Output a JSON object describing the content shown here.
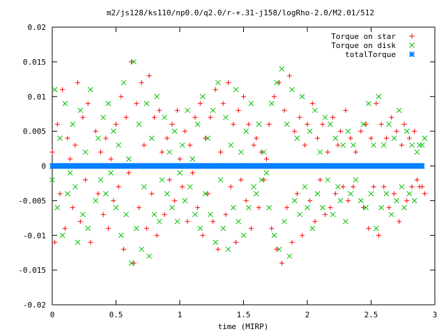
{
  "chart_data": {
    "type": "scatter",
    "title": "m2/js128/ks110/np0.0/q2.0/r-+.31-j158/logRho-2.0/M2.01/512",
    "xlabel": "time (MIRP)",
    "ylabel": "",
    "xlim": [
      0,
      3
    ],
    "ylim": [
      -0.02,
      0.02
    ],
    "xticks": [
      "0",
      "0.5",
      "1",
      "1.5",
      "2",
      "2.5",
      "3"
    ],
    "yticks": [
      "-0.02",
      "-0.015",
      "-0.01",
      "-0.005",
      "0",
      "0.005",
      "0.01",
      "0.015",
      "0.02"
    ],
    "grid": false,
    "legend_position": "top-right",
    "x_sample_start": 0.0,
    "x_sample_end": 2.9,
    "x_sample_step": 0.02,
    "series": [
      {
        "name": "Torque on star",
        "marker": "plus",
        "color": "#ff0000",
        "y": [
          0.002,
          -0.011,
          0.006,
          -0.004,
          0.011,
          -0.009,
          0.004,
          0.001,
          -0.006,
          0.003,
          0.012,
          -0.008,
          0.007,
          -0.002,
          0.009,
          -0.011,
          0.0,
          0.005,
          -0.004,
          0.002,
          -0.007,
          0.004,
          -0.009,
          0.001,
          -0.005,
          0.006,
          -0.003,
          0.01,
          -0.012,
          0.007,
          -0.001,
          0.015,
          -0.014,
          0.009,
          -0.006,
          0.012,
          0.003,
          -0.009,
          0.013,
          -0.004,
          0.007,
          -0.01,
          0.008,
          0.002,
          -0.007,
          0.004,
          -0.002,
          0.006,
          -0.005,
          0.008,
          0.001,
          -0.003,
          0.005,
          -0.008,
          0.003,
          -0.001,
          0.007,
          -0.006,
          0.009,
          -0.01,
          0.004,
          -0.004,
          0.007,
          -0.008,
          0.011,
          -0.012,
          0.002,
          0.009,
          -0.007,
          0.012,
          -0.003,
          0.006,
          -0.011,
          0.008,
          -0.002,
          0.01,
          -0.005,
          0.006,
          -0.009,
          0.003,
          0.004,
          -0.006,
          0.002,
          -0.002,
          0.001,
          0.006,
          -0.009,
          0.01,
          -0.012,
          0.012,
          -0.014,
          0.008,
          -0.006,
          0.013,
          -0.011,
          0.005,
          -0.004,
          0.007,
          -0.01,
          0.003,
          0.006,
          -0.005,
          0.009,
          -0.008,
          0.004,
          -0.002,
          0.006,
          -0.007,
          0.002,
          -0.006,
          0.007,
          -0.004,
          0.003,
          0.005,
          -0.003,
          0.008,
          -0.005,
          0.004,
          -0.003,
          0.002,
          0.0,
          0.005,
          -0.006,
          0.006,
          -0.009,
          0.004,
          -0.003,
          0.009,
          -0.01,
          0.006,
          -0.003,
          0.004,
          -0.006,
          0.007,
          -0.004,
          0.005,
          -0.008,
          0.003,
          0.006,
          -0.005,
          0.004,
          -0.003,
          0.005,
          -0.002,
          -0.003,
          -0.003,
          -0.004
        ]
      },
      {
        "name": "Torque on disk",
        "marker": "cross",
        "color": "#00c000",
        "y": [
          -0.002,
          0.011,
          -0.006,
          0.004,
          -0.01,
          0.009,
          -0.004,
          -0.001,
          0.006,
          -0.003,
          -0.011,
          0.008,
          -0.007,
          0.002,
          -0.009,
          0.011,
          0.0,
          -0.005,
          0.004,
          -0.002,
          0.007,
          -0.004,
          0.009,
          -0.001,
          0.005,
          -0.006,
          0.003,
          -0.01,
          0.012,
          -0.007,
          0.001,
          -0.014,
          0.015,
          -0.009,
          0.006,
          -0.012,
          -0.003,
          0.009,
          -0.013,
          0.004,
          -0.007,
          0.01,
          -0.008,
          -0.002,
          0.007,
          -0.004,
          0.002,
          -0.006,
          0.005,
          -0.008,
          -0.001,
          0.003,
          -0.005,
          0.008,
          -0.003,
          0.001,
          -0.007,
          0.006,
          -0.009,
          0.01,
          -0.004,
          0.004,
          -0.007,
          0.008,
          -0.011,
          0.012,
          -0.002,
          -0.009,
          0.007,
          -0.012,
          0.003,
          -0.006,
          0.011,
          -0.008,
          0.002,
          -0.01,
          0.005,
          -0.006,
          0.009,
          -0.003,
          -0.004,
          0.006,
          -0.002,
          0.002,
          -0.001,
          -0.006,
          0.009,
          -0.01,
          0.012,
          -0.012,
          0.014,
          -0.008,
          0.006,
          -0.013,
          0.011,
          -0.005,
          0.004,
          -0.007,
          0.01,
          -0.003,
          -0.006,
          0.005,
          -0.009,
          0.008,
          -0.004,
          0.002,
          -0.006,
          0.007,
          -0.002,
          0.006,
          -0.007,
          0.004,
          -0.003,
          -0.005,
          0.003,
          -0.008,
          0.005,
          -0.004,
          0.003,
          -0.002,
          0.0,
          -0.005,
          0.006,
          -0.006,
          0.009,
          -0.004,
          0.003,
          -0.009,
          0.01,
          -0.006,
          0.003,
          -0.004,
          0.006,
          -0.007,
          0.004,
          -0.005,
          0.008,
          -0.003,
          -0.006,
          0.005,
          -0.004,
          0.003,
          -0.005,
          0.002,
          0.003,
          0.003,
          0.004
        ]
      },
      {
        "name": "totalTorque",
        "marker": "star",
        "color": "#0080ff",
        "y": [
          0.0,
          0.0,
          0.0,
          0.0,
          0.0,
          0.0,
          0.0,
          0.0,
          0.0,
          0.0,
          0.0,
          0.0,
          0.0,
          0.0,
          0.0,
          0.0,
          0.0,
          0.0,
          0.0,
          0.0,
          0.0,
          0.0,
          0.0,
          0.0,
          0.0,
          0.0,
          0.0,
          0.0,
          0.0,
          0.0,
          0.0,
          0.0,
          0.0,
          0.0,
          0.0,
          0.0,
          0.0,
          0.0,
          0.0,
          0.0,
          0.0,
          0.0,
          0.0,
          0.0,
          0.0,
          0.0,
          0.0,
          0.0,
          0.0,
          0.0,
          0.0,
          0.0,
          0.0,
          0.0,
          0.0,
          0.0,
          0.0,
          0.0,
          0.0,
          0.0,
          0.0,
          0.0,
          0.0,
          0.0,
          0.0,
          0.0,
          0.0,
          0.0,
          0.0,
          0.0,
          0.0,
          0.0,
          0.0,
          0.0,
          0.0,
          0.0,
          0.0,
          0.0,
          0.0,
          0.0,
          0.0,
          0.0,
          0.0,
          0.0,
          0.0,
          0.0,
          0.0,
          0.0,
          0.0,
          0.0,
          0.0,
          0.0,
          0.0,
          0.0,
          0.0,
          0.0,
          0.0,
          0.0,
          0.0,
          0.0,
          0.0,
          0.0,
          0.0,
          0.0,
          0.0,
          0.0,
          0.0,
          0.0,
          0.0,
          0.0,
          0.0,
          0.0,
          0.0,
          0.0,
          0.0,
          0.0,
          0.0,
          0.0,
          0.0,
          0.0,
          0.0,
          0.0,
          0.0,
          0.0,
          0.0,
          0.0,
          0.0,
          0.0,
          0.0,
          0.0,
          0.0,
          0.0,
          0.0,
          0.0,
          0.0,
          0.0,
          0.0,
          0.0,
          0.0,
          0.0,
          0.0,
          0.0,
          0.0,
          0.0,
          0.0,
          0.0,
          0.0
        ]
      }
    ]
  }
}
